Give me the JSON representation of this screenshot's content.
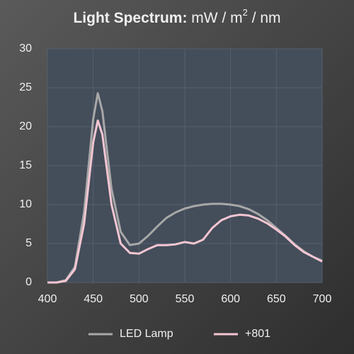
{
  "chart_data": {
    "type": "line",
    "title": {
      "bold": "Light Spectrum:",
      "unit": "mW / m",
      "superscript": "2",
      "unit_end": "/ nm"
    },
    "x": [
      400,
      410,
      420,
      430,
      440,
      450,
      455,
      460,
      470,
      480,
      490,
      500,
      510,
      520,
      530,
      540,
      550,
      560,
      570,
      580,
      590,
      600,
      610,
      620,
      630,
      640,
      650,
      660,
      670,
      680,
      690,
      700
    ],
    "series": [
      {
        "name": "LED Lamp",
        "color": "#a8a8a8",
        "values": [
          0,
          0,
          0.3,
          2,
          9,
          21,
          24.3,
          22,
          12,
          6.5,
          4.8,
          5,
          6,
          7.2,
          8.3,
          9,
          9.5,
          9.8,
          10,
          10.1,
          10.1,
          10,
          9.8,
          9.4,
          8.8,
          8,
          7,
          6,
          4.9,
          4,
          3.3,
          2.8
        ]
      },
      {
        "name": "+801",
        "color": "#f3c6d2",
        "values": [
          0,
          0,
          0.2,
          1.7,
          7.5,
          18,
          20.8,
          19,
          10,
          5,
          3.8,
          3.7,
          4.3,
          4.8,
          4.8,
          4.9,
          5.2,
          5,
          5.5,
          7,
          8,
          8.5,
          8.7,
          8.6,
          8.2,
          7.6,
          6.8,
          5.9,
          4.8,
          3.9,
          3.3,
          2.7
        ]
      }
    ],
    "xlim": [
      400,
      700
    ],
    "xticks": [
      400,
      450,
      500,
      550,
      600,
      650,
      700
    ],
    "ylim": [
      0,
      30
    ],
    "yticks": [
      0,
      5,
      10,
      15,
      20,
      25,
      30
    ],
    "grid": true,
    "legend": "bottom"
  }
}
